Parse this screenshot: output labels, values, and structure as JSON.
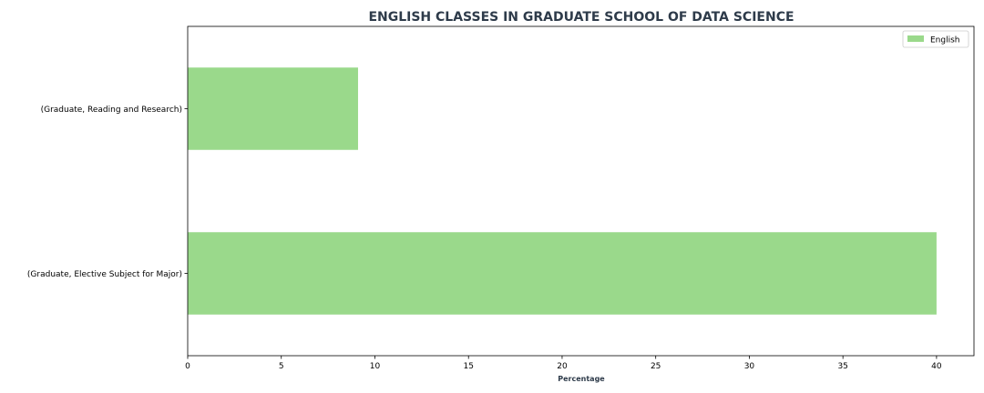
{
  "chart_data": {
    "type": "bar",
    "orientation": "horizontal",
    "title": "ENGLISH CLASSES IN GRADUATE SCHOOL OF DATA SCIENCE",
    "xlabel": "Percentage",
    "ylabel": "",
    "categories": [
      "(Graduate, Elective Subject for Major)",
      "(Graduate, Reading and Research)"
    ],
    "series": [
      {
        "name": "English",
        "values": [
          40.0,
          9.1
        ],
        "color": "#9ad98b"
      }
    ],
    "xlim": [
      0,
      42
    ],
    "xticks": [
      0,
      5,
      10,
      15,
      20,
      25,
      30,
      35,
      40
    ],
    "grid": false,
    "legend": "top-right",
    "colors": {
      "title": "#2e3b4a",
      "axis_label": "#2e3b4a",
      "axis": "#000000"
    }
  }
}
